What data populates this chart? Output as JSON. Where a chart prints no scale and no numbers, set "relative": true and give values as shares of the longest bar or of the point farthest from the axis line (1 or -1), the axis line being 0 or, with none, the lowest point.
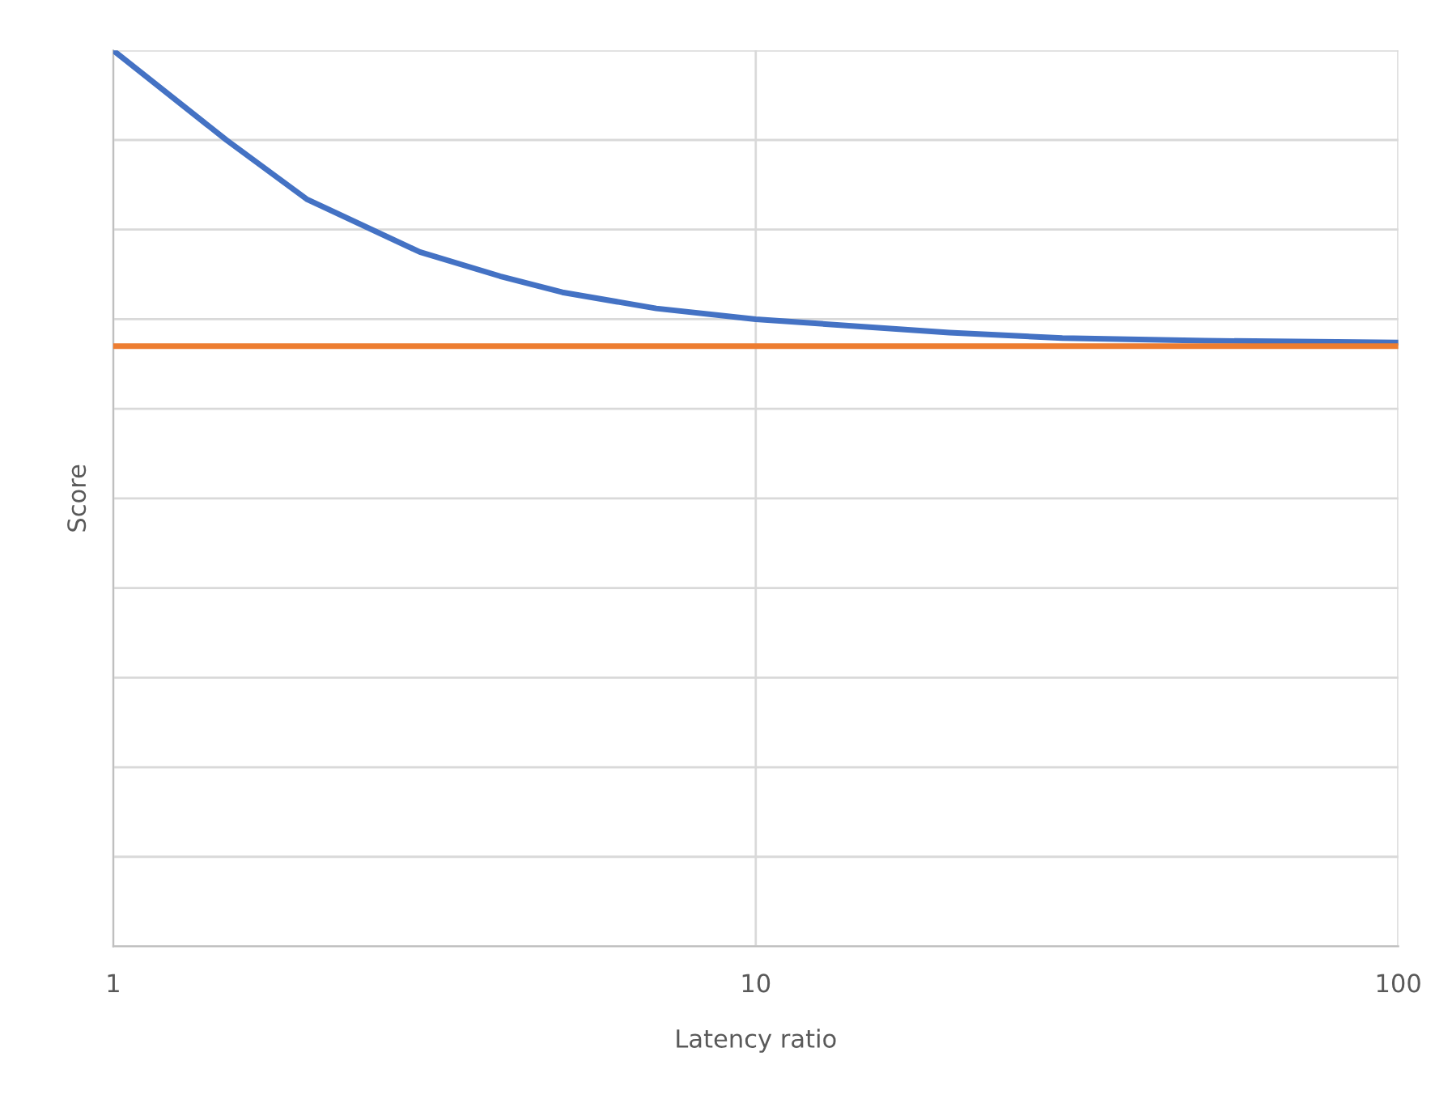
{
  "chart_data": {
    "type": "line",
    "xlabel": "Latency ratio",
    "ylabel": "Score",
    "log": "x",
    "relative": true,
    "grid": true,
    "legend": false,
    "marker": "none",
    "line_style": "solid",
    "xlim": [
      1,
      100
    ],
    "xticks": [
      1,
      10,
      100
    ],
    "series": [
      {
        "color": "#4472c4",
        "x": [
          1,
          1.5,
          2,
          3,
          4,
          5,
          7,
          10,
          20,
          30,
          50,
          100
        ],
        "values": [
          1.0,
          0.9,
          0.834,
          0.775,
          0.748,
          0.73,
          0.712,
          0.7,
          0.685,
          0.679,
          0.676,
          0.674
        ]
      },
      {
        "color": "#ed7d31",
        "x": [
          1,
          100
        ],
        "values": [
          0.67,
          0.67
        ]
      }
    ]
  }
}
